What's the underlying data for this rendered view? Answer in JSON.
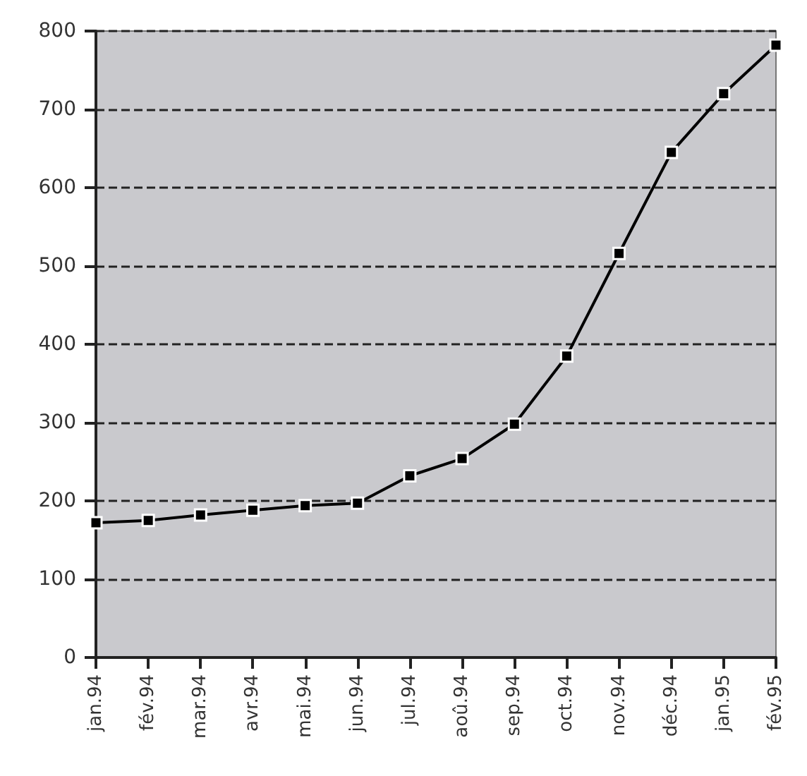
{
  "chart_data": {
    "type": "line",
    "categories": [
      "jan.94",
      "fév.94",
      "mar.94",
      "avr.94",
      "mai.94",
      "jun.94",
      "jul.94",
      "aoû.94",
      "sep.94",
      "oct.94",
      "nov.94",
      "déc.94",
      "jan.95",
      "fév.95"
    ],
    "series": [
      {
        "color": "#000000",
        "values": [
          172,
          175,
          182,
          188,
          194,
          197,
          232,
          254,
          298,
          385,
          516,
          645,
          720,
          782
        ]
      }
    ],
    "ylim": [
      0,
      800
    ],
    "yticks": [
      0,
      100,
      200,
      300,
      400,
      500,
      600,
      700,
      800
    ],
    "grid": "y",
    "marker": "square",
    "line_style": "solid"
  }
}
